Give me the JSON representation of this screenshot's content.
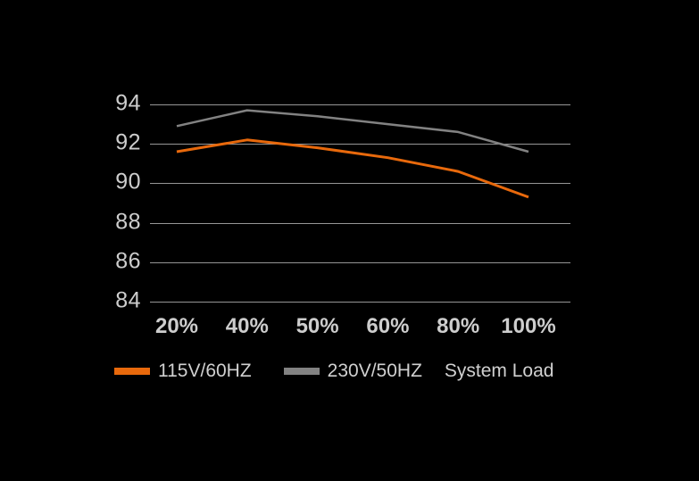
{
  "chart_data": {
    "type": "line",
    "x": [
      "20%",
      "40%",
      "50%",
      "60%",
      "80%",
      "100%"
    ],
    "series": [
      {
        "name": "115V/60HZ",
        "color": "#E8690C",
        "stroke_width": 3,
        "values": [
          91.6,
          92.2,
          91.8,
          91.3,
          90.6,
          89.3
        ]
      },
      {
        "name": "230V/50HZ",
        "color": "#828282",
        "stroke_width": 2.5,
        "values": [
          92.9,
          93.7,
          93.4,
          93.0,
          92.6,
          91.6
        ]
      }
    ],
    "xlabel": "System Load",
    "ylabel": "",
    "ylim": [
      84,
      94
    ],
    "yticks": [
      94,
      92,
      90,
      88,
      86,
      84
    ],
    "grid": "horizontal",
    "legend_position": "bottom",
    "colors": {
      "background": "#000000",
      "gridline": "#969696",
      "tick_label": "#CDCDCD",
      "legend_text": "#D0D0D0"
    }
  }
}
